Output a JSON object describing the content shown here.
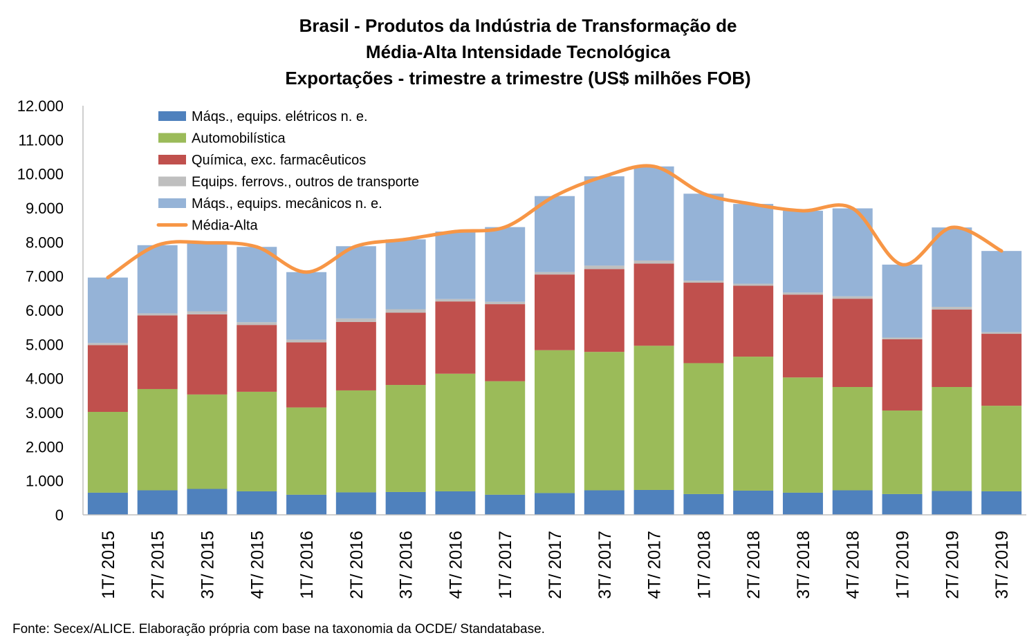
{
  "title_lines": [
    "Brasil - Produtos da Indústria de Transformação de",
    "Média-Alta Intensidade Tecnológica",
    "Exportações - trimestre a trimestre (US$ milhões FOB)"
  ],
  "source": "Fonte: Secex/ALICE. Elaboração própria com base na taxonomia da OCDE/ Standatabase.",
  "chart_data": {
    "type": "bar",
    "stacked": true,
    "title": "Brasil - Produtos da Indústria de Transformação de Média-Alta Intensidade Tecnológica Exportações - trimestre a trimestre (US$ milhões FOB)",
    "categories": [
      "1T/ 2015",
      "2T/ 2015",
      "3T/ 2015",
      "4T/ 2015",
      "1T/ 2016",
      "2T/ 2016",
      "3T/ 2016",
      "4T/ 2016",
      "1T/ 2017",
      "2T/ 2017",
      "3T/ 2017",
      "4T/ 2017",
      "1T/ 2018",
      "2T/ 2018",
      "3T/ 2018",
      "4T/ 2018",
      "1T/ 2019",
      "2T/ 2019",
      "3T/ 2019"
    ],
    "yticks": [
      "0",
      "1.000",
      "2.000",
      "3.000",
      "4.000",
      "5.000",
      "6.000",
      "7.000",
      "8.000",
      "9.000",
      "10.000",
      "11.000",
      "12.000"
    ],
    "ylim": [
      0,
      12000
    ],
    "xlabel": "",
    "ylabel": "",
    "legend_position": "top-left",
    "grid": false,
    "series": [
      {
        "name": "Máqs., equips. elétricos n. e.",
        "color": "#4f81bd",
        "values": [
          650,
          720,
          760,
          690,
          590,
          660,
          670,
          690,
          590,
          640,
          720,
          730,
          610,
          710,
          650,
          720,
          610,
          700,
          690
        ]
      },
      {
        "name": "Automobilística",
        "color": "#9bbb59",
        "values": [
          2370,
          2970,
          2770,
          2920,
          2560,
          2990,
          3140,
          3450,
          3330,
          4190,
          4060,
          4230,
          3840,
          3930,
          3380,
          3030,
          2450,
          3050,
          2510
        ]
      },
      {
        "name": "Química, exc. farmacêuticos",
        "color": "#c0504d",
        "values": [
          1960,
          2160,
          2350,
          1960,
          1910,
          2010,
          2120,
          2120,
          2260,
          2220,
          2430,
          2410,
          2360,
          2080,
          2430,
          2590,
          2090,
          2270,
          2110
        ]
      },
      {
        "name": "Equips. ferrovs., outros de transporte",
        "color": "#bfbfbf",
        "values": [
          60,
          60,
          90,
          80,
          80,
          100,
          100,
          70,
          70,
          70,
          100,
          90,
          60,
          60,
          60,
          70,
          50,
          80,
          50
        ]
      },
      {
        "name": "Máqs., equips. mecânicos  n. e.",
        "color": "#95b3d7",
        "values": [
          1920,
          2000,
          2010,
          2210,
          1980,
          2120,
          2050,
          1980,
          2190,
          2230,
          2620,
          2760,
          2550,
          2340,
          2400,
          2580,
          2140,
          2330,
          2380
        ]
      }
    ],
    "line": {
      "name": "Média-Alta",
      "color": "#f79646",
      "values": [
        6960,
        7910,
        7980,
        7860,
        7120,
        7880,
        8080,
        8310,
        8440,
        9350,
        9930,
        10220,
        9420,
        9110,
        8920,
        8990,
        7340,
        8430,
        7740
      ]
    }
  }
}
